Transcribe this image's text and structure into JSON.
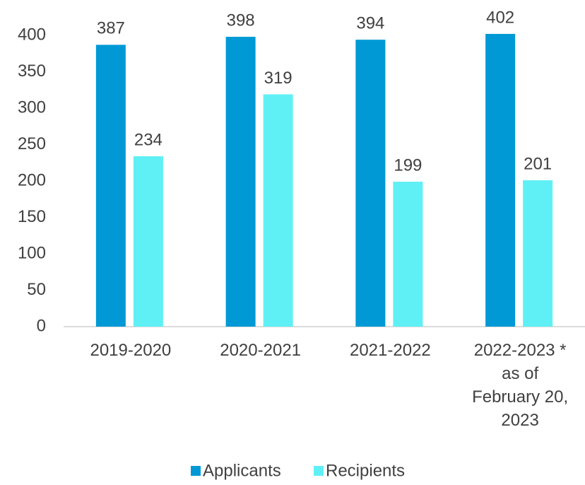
{
  "chart_data": {
    "type": "bar",
    "categories": [
      "2019-2020",
      "2020-2021",
      "2021-2022",
      "2022-2023 *\nas of\nFebruary 20,\n2023"
    ],
    "series": [
      {
        "name": "Applicants",
        "color": "#0099d6",
        "values": [
          387,
          398,
          394,
          402
        ]
      },
      {
        "name": "Recipients",
        "color": "#5ff0f5",
        "values": [
          234,
          319,
          199,
          201
        ]
      }
    ],
    "ylim": [
      0,
      400
    ],
    "yticks": [
      0,
      50,
      100,
      150,
      200,
      250,
      300,
      350,
      400
    ],
    "grid": false,
    "legend": "bottom"
  }
}
